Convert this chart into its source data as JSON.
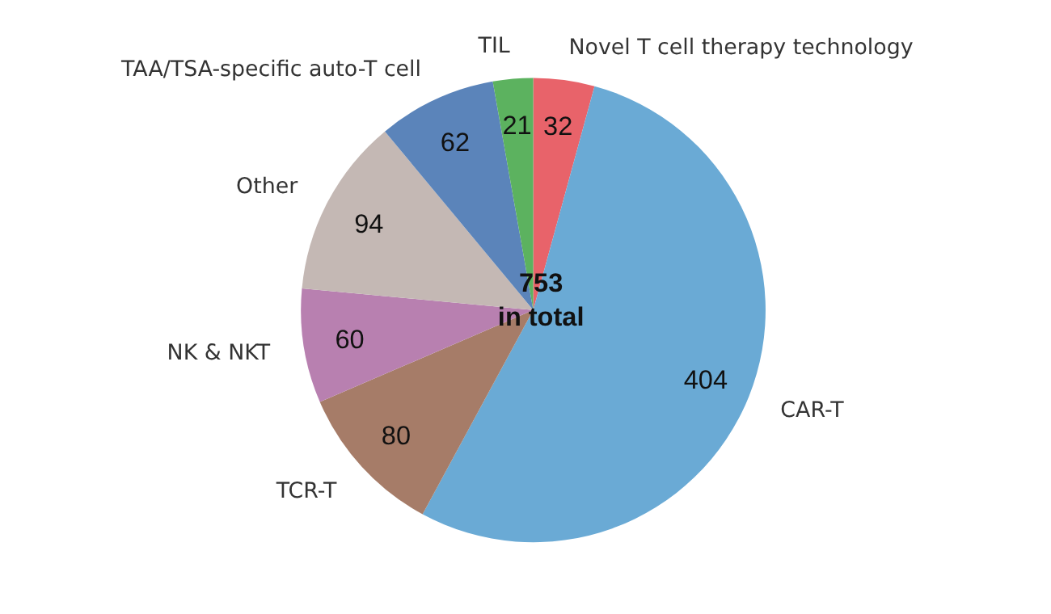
{
  "chart_data": {
    "type": "pie",
    "categories": [
      "Novel T cell therapy technology",
      "CAR-T",
      "TCR-T",
      "NK & NKT",
      "Other",
      "TAA/TSA-specific auto-T cell",
      "TIL"
    ],
    "values": [
      32,
      404,
      80,
      60,
      94,
      62,
      21
    ],
    "colors": [
      "#e8636a",
      "#6aaad5",
      "#a67c68",
      "#b880b0",
      "#c4b8b4",
      "#5b84ba",
      "#5cb25f"
    ],
    "data_labels": true,
    "annotations": [
      "753\nin total"
    ]
  }
}
